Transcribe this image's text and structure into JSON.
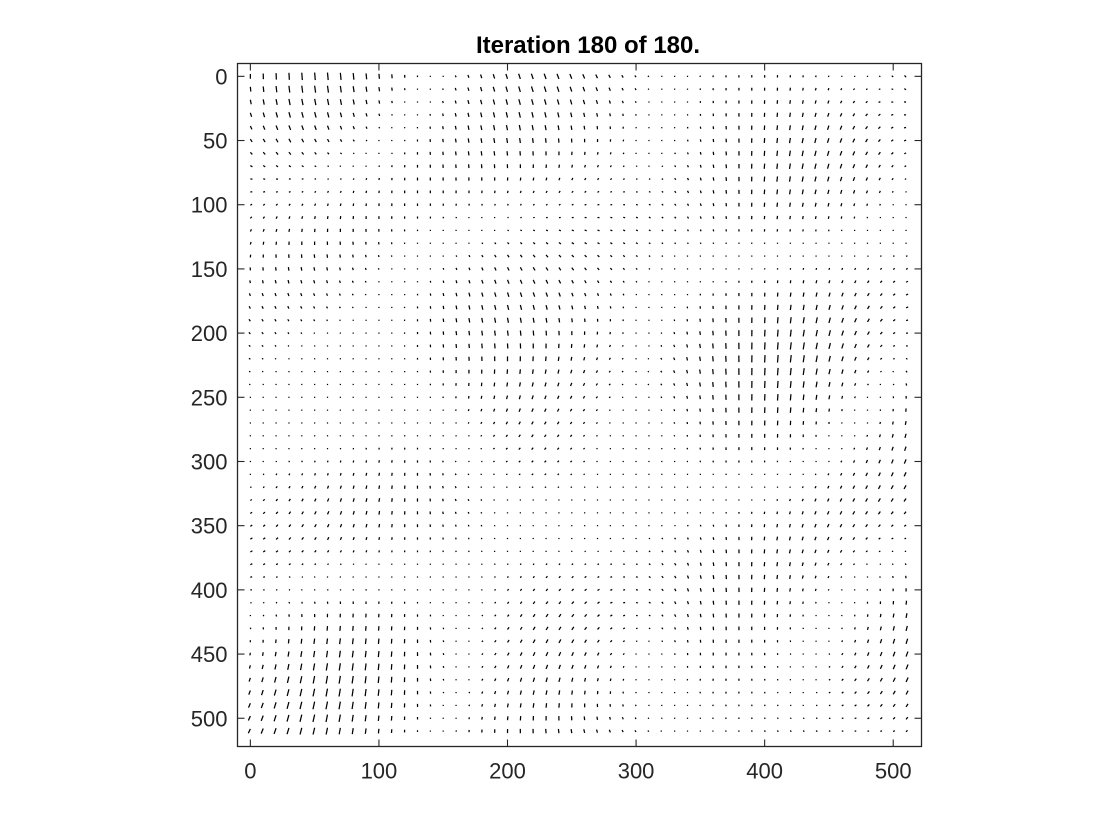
{
  "chart_data": {
    "type": "quiver",
    "title": "Iteration 180 of 180.",
    "xlabel": "",
    "ylabel": "",
    "xlim": [
      -10,
      522
    ],
    "ylim": [
      -10,
      522
    ],
    "y_reversed": true,
    "x_ticks": [
      0,
      100,
      200,
      300,
      400,
      500
    ],
    "y_ticks": [
      0,
      50,
      100,
      150,
      200,
      250,
      300,
      350,
      400,
      450,
      500
    ],
    "x_tick_labels": [
      "0",
      "100",
      "200",
      "300",
      "400",
      "500"
    ],
    "y_tick_labels": [
      "0",
      "50",
      "100",
      "150",
      "200",
      "250",
      "300",
      "350",
      "400",
      "450",
      "500"
    ],
    "grid": false,
    "box": true,
    "arrow_color": "#000000",
    "axis_color": "#262626",
    "field": {
      "x_start": 0,
      "y_start": 0,
      "spacing": 10,
      "count_x": 52,
      "count_y": 52,
      "description": "displacement vectors on a 10-pixel grid"
    }
  }
}
